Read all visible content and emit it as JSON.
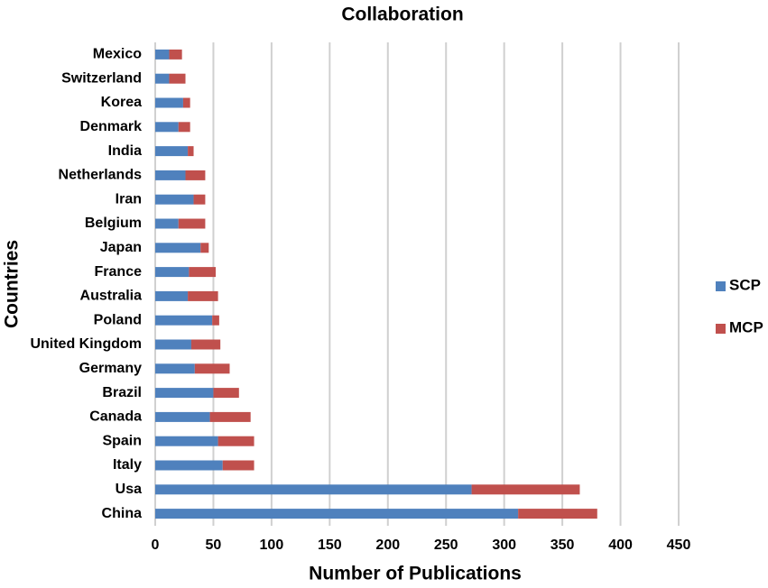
{
  "chart_data": {
    "type": "stacked-bar-horizontal",
    "title": "Collaboration",
    "x_label": "Number of Publications",
    "y_label": "Countries",
    "categories": [
      "China",
      "Usa",
      "Italy",
      "Spain",
      "Canada",
      "Brazil",
      "Germany",
      "United Kingdom",
      "Poland",
      "Australia",
      "France",
      "Japan",
      "Belgium",
      "Iran",
      "Netherlands",
      "India",
      "Denmark",
      "Korea",
      "Switzerland",
      "Mexico"
    ],
    "series": [
      {
        "name": "SCP",
        "color": "#4f81bd",
        "values": [
          312,
          272,
          58,
          54,
          47,
          50,
          34,
          31,
          49,
          28,
          29,
          39,
          20,
          33,
          26,
          28,
          20,
          24,
          12,
          12
        ]
      },
      {
        "name": "MCP",
        "color": "#c0504d",
        "values": [
          68,
          93,
          27,
          31,
          35,
          22,
          30,
          25,
          6,
          26,
          23,
          7,
          23,
          10,
          17,
          5,
          10,
          6,
          14,
          11
        ]
      }
    ],
    "xlim": [
      0,
      450
    ],
    "xticks": [
      0,
      50,
      100,
      150,
      200,
      250,
      300,
      350,
      400,
      450
    ],
    "grid": true,
    "legend": "right"
  }
}
